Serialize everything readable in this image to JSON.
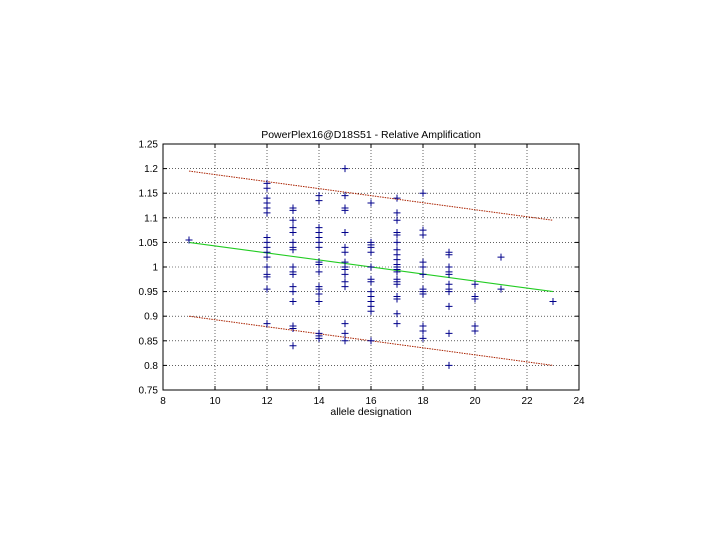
{
  "chart_data": {
    "type": "scatter",
    "title": "PowerPlex16@D18S51 - Relative Amplification",
    "xlabel": "allele designation",
    "ylabel": "",
    "xlim": [
      8,
      24
    ],
    "ylim": [
      0.75,
      1.25
    ],
    "x_ticks": [
      "8",
      "10",
      "12",
      "14",
      "16",
      "18",
      "20",
      "22",
      "24"
    ],
    "y_ticks": [
      "0.75",
      "0.8",
      "0.85",
      "0.9",
      "0.95",
      "1",
      "1.05",
      "1.1",
      "1.15",
      "1.2",
      "1.25"
    ],
    "x_tick_values": [
      8,
      10,
      12,
      14,
      16,
      18,
      20,
      22,
      24
    ],
    "y_tick_values": [
      0.75,
      0.8,
      0.85,
      0.9,
      0.95,
      1.0,
      1.05,
      1.1,
      1.15,
      1.2,
      1.25
    ],
    "grid": true,
    "marker": "+",
    "colors": {
      "points": "#00008b",
      "fit_line": "#22cc22",
      "bound_lines": "#aa2200",
      "grid": "#000000"
    },
    "points": [
      [
        9,
        1.055
      ],
      [
        12,
        1.17
      ],
      [
        12,
        1.16
      ],
      [
        12,
        1.14
      ],
      [
        12,
        1.13
      ],
      [
        12,
        1.12
      ],
      [
        12,
        1.11
      ],
      [
        12,
        1.06
      ],
      [
        12,
        1.05
      ],
      [
        12,
        1.04
      ],
      [
        12,
        1.03
      ],
      [
        12,
        1.02
      ],
      [
        12,
        1.0
      ],
      [
        12,
        0.985
      ],
      [
        12,
        0.98
      ],
      [
        12,
        0.955
      ],
      [
        12,
        0.885
      ],
      [
        13,
        1.12
      ],
      [
        13,
        1.115
      ],
      [
        13,
        1.095
      ],
      [
        13,
        1.08
      ],
      [
        13,
        1.07
      ],
      [
        13,
        1.05
      ],
      [
        13,
        1.04
      ],
      [
        13,
        1.035
      ],
      [
        13,
        1.0
      ],
      [
        13,
        0.99
      ],
      [
        13,
        0.985
      ],
      [
        13,
        0.96
      ],
      [
        13,
        0.95
      ],
      [
        13,
        0.93
      ],
      [
        13,
        0.88
      ],
      [
        13,
        0.875
      ],
      [
        13,
        0.84
      ],
      [
        14,
        1.145
      ],
      [
        14,
        1.135
      ],
      [
        14,
        1.08
      ],
      [
        14,
        1.07
      ],
      [
        14,
        1.06
      ],
      [
        14,
        1.05
      ],
      [
        14,
        1.04
      ],
      [
        14,
        1.01
      ],
      [
        14,
        1.005
      ],
      [
        14,
        0.99
      ],
      [
        14,
        0.96
      ],
      [
        14,
        0.955
      ],
      [
        14,
        0.945
      ],
      [
        14,
        0.93
      ],
      [
        14,
        0.865
      ],
      [
        14,
        0.86
      ],
      [
        14,
        0.855
      ],
      [
        15,
        1.2
      ],
      [
        15,
        1.145
      ],
      [
        15,
        1.12
      ],
      [
        15,
        1.115
      ],
      [
        15,
        1.07
      ],
      [
        15,
        1.04
      ],
      [
        15,
        1.03
      ],
      [
        15,
        1.01
      ],
      [
        15,
        1.0
      ],
      [
        15,
        0.995
      ],
      [
        15,
        0.985
      ],
      [
        15,
        0.97
      ],
      [
        15,
        0.96
      ],
      [
        15,
        0.885
      ],
      [
        15,
        0.865
      ],
      [
        15,
        0.85
      ],
      [
        16,
        1.13
      ],
      [
        16,
        1.05
      ],
      [
        16,
        1.045
      ],
      [
        16,
        1.04
      ],
      [
        16,
        1.03
      ],
      [
        16,
        1.0
      ],
      [
        16,
        0.975
      ],
      [
        16,
        0.97
      ],
      [
        16,
        0.95
      ],
      [
        16,
        0.94
      ],
      [
        16,
        0.93
      ],
      [
        16,
        0.92
      ],
      [
        16,
        0.91
      ],
      [
        16,
        0.85
      ],
      [
        17,
        1.14
      ],
      [
        17,
        1.11
      ],
      [
        17,
        1.095
      ],
      [
        17,
        1.07
      ],
      [
        17,
        1.065
      ],
      [
        17,
        1.05
      ],
      [
        17,
        1.035
      ],
      [
        17,
        1.025
      ],
      [
        17,
        1.015
      ],
      [
        17,
        1.005
      ],
      [
        17,
        1.0
      ],
      [
        17,
        0.995
      ],
      [
        17,
        0.99
      ],
      [
        17,
        0.975
      ],
      [
        17,
        0.97
      ],
      [
        17,
        0.965
      ],
      [
        17,
        0.94
      ],
      [
        17,
        0.935
      ],
      [
        17,
        0.905
      ],
      [
        17,
        0.885
      ],
      [
        18,
        1.15
      ],
      [
        18,
        1.075
      ],
      [
        18,
        1.065
      ],
      [
        18,
        1.01
      ],
      [
        18,
        1.0
      ],
      [
        18,
        0.985
      ],
      [
        18,
        0.955
      ],
      [
        18,
        0.95
      ],
      [
        18,
        0.945
      ],
      [
        18,
        0.88
      ],
      [
        18,
        0.87
      ],
      [
        18,
        0.855
      ],
      [
        19,
        1.03
      ],
      [
        19,
        1.025
      ],
      [
        19,
        1.0
      ],
      [
        19,
        0.99
      ],
      [
        19,
        0.985
      ],
      [
        19,
        0.965
      ],
      [
        19,
        0.955
      ],
      [
        19,
        0.95
      ],
      [
        19,
        0.92
      ],
      [
        19,
        0.865
      ],
      [
        19,
        0.8
      ],
      [
        20,
        0.965
      ],
      [
        20,
        0.94
      ],
      [
        20,
        0.935
      ],
      [
        20,
        0.88
      ],
      [
        20,
        0.87
      ],
      [
        21,
        1.02
      ],
      [
        21,
        0.955
      ],
      [
        23,
        0.93
      ]
    ],
    "fit_line": [
      [
        9,
        1.05
      ],
      [
        23,
        0.95
      ]
    ],
    "upper_bound": [
      [
        9,
        1.195
      ],
      [
        23,
        1.095
      ]
    ],
    "lower_bound": [
      [
        9,
        0.9
      ],
      [
        23,
        0.8
      ]
    ]
  }
}
